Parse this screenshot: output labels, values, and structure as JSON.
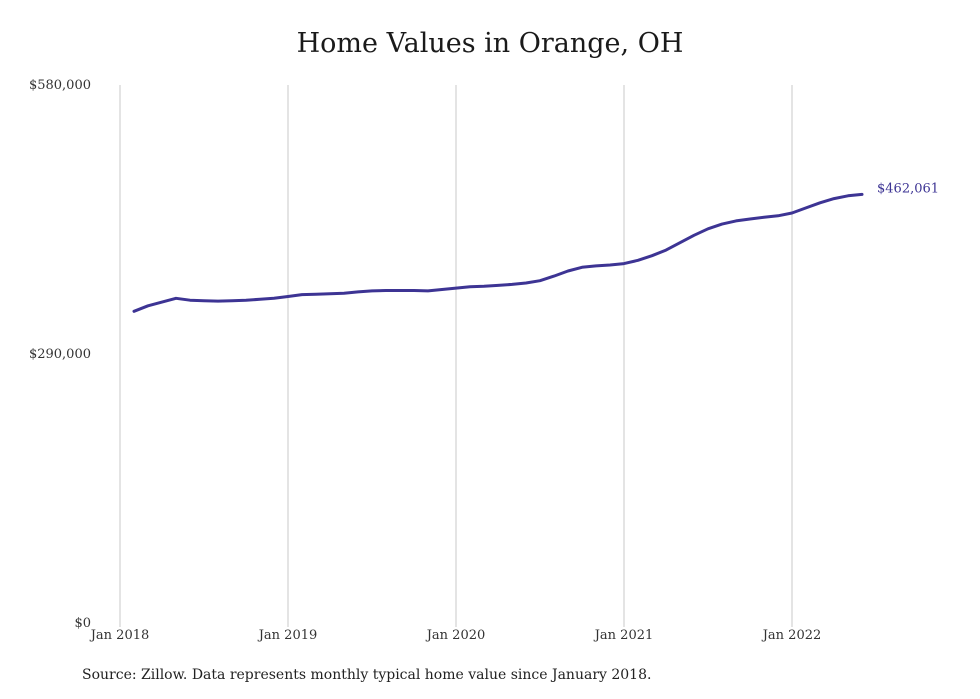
{
  "title": "Home Values in Orange, OH",
  "source": "Source: Zillow. Data represents monthly typical home value since January 2018.",
  "colors": {
    "line": "#3d3494",
    "grid": "#c8c8c8",
    "text": "#333333"
  },
  "chart_data": {
    "type": "line",
    "title": "Home Values in Orange, OH",
    "xlabel": "",
    "ylabel": "",
    "ylim": [
      0,
      580000
    ],
    "yticks": [
      0,
      290000,
      580000
    ],
    "ytick_labels": [
      "$0",
      "$290,000",
      "$580,000"
    ],
    "xticks": [
      "2018-01",
      "2019-01",
      "2020-01",
      "2021-01",
      "2022-01"
    ],
    "xtick_labels": [
      "Jan 2018",
      "Jan 2019",
      "Jan 2020",
      "Jan 2021",
      "Jan 2022"
    ],
    "grid": "vertical",
    "end_label": "$462,061",
    "series": [
      {
        "values": [
          {
            "x": "2018-02",
            "y": 336000
          },
          {
            "x": "2018-03",
            "y": 342000
          },
          {
            "x": "2018-04",
            "y": 346000
          },
          {
            "x": "2018-05",
            "y": 350000
          },
          {
            "x": "2018-06",
            "y": 348000
          },
          {
            "x": "2018-07",
            "y": 347500
          },
          {
            "x": "2018-08",
            "y": 347000
          },
          {
            "x": "2018-09",
            "y": 347500
          },
          {
            "x": "2018-10",
            "y": 348000
          },
          {
            "x": "2018-11",
            "y": 349000
          },
          {
            "x": "2018-12",
            "y": 350000
          },
          {
            "x": "2019-01",
            "y": 352000
          },
          {
            "x": "2019-02",
            "y": 354000
          },
          {
            "x": "2019-03",
            "y": 354500
          },
          {
            "x": "2019-04",
            "y": 355000
          },
          {
            "x": "2019-05",
            "y": 355500
          },
          {
            "x": "2019-06",
            "y": 357000
          },
          {
            "x": "2019-07",
            "y": 358000
          },
          {
            "x": "2019-08",
            "y": 358500
          },
          {
            "x": "2019-09",
            "y": 358500
          },
          {
            "x": "2019-10",
            "y": 358500
          },
          {
            "x": "2019-11",
            "y": 358000
          },
          {
            "x": "2019-12",
            "y": 359500
          },
          {
            "x": "2020-01",
            "y": 361000
          },
          {
            "x": "2020-02",
            "y": 362500
          },
          {
            "x": "2020-03",
            "y": 363000
          },
          {
            "x": "2020-04",
            "y": 364000
          },
          {
            "x": "2020-05",
            "y": 365000
          },
          {
            "x": "2020-06",
            "y": 366500
          },
          {
            "x": "2020-07",
            "y": 369000
          },
          {
            "x": "2020-08",
            "y": 374000
          },
          {
            "x": "2020-09",
            "y": 379500
          },
          {
            "x": "2020-10",
            "y": 383500
          },
          {
            "x": "2020-11",
            "y": 385000
          },
          {
            "x": "2020-12",
            "y": 386000
          },
          {
            "x": "2021-01",
            "y": 387500
          },
          {
            "x": "2021-02",
            "y": 391000
          },
          {
            "x": "2021-03",
            "y": 396000
          },
          {
            "x": "2021-04",
            "y": 402000
          },
          {
            "x": "2021-05",
            "y": 410000
          },
          {
            "x": "2021-06",
            "y": 418000
          },
          {
            "x": "2021-07",
            "y": 425000
          },
          {
            "x": "2021-08",
            "y": 430000
          },
          {
            "x": "2021-09",
            "y": 433500
          },
          {
            "x": "2021-10",
            "y": 435500
          },
          {
            "x": "2021-11",
            "y": 437500
          },
          {
            "x": "2021-12",
            "y": 439000
          },
          {
            "x": "2022-01",
            "y": 442000
          },
          {
            "x": "2022-02",
            "y": 447500
          },
          {
            "x": "2022-03",
            "y": 453000
          },
          {
            "x": "2022-04",
            "y": 457500
          },
          {
            "x": "2022-05",
            "y": 460500
          },
          {
            "x": "2022-06",
            "y": 462061
          }
        ]
      }
    ]
  }
}
